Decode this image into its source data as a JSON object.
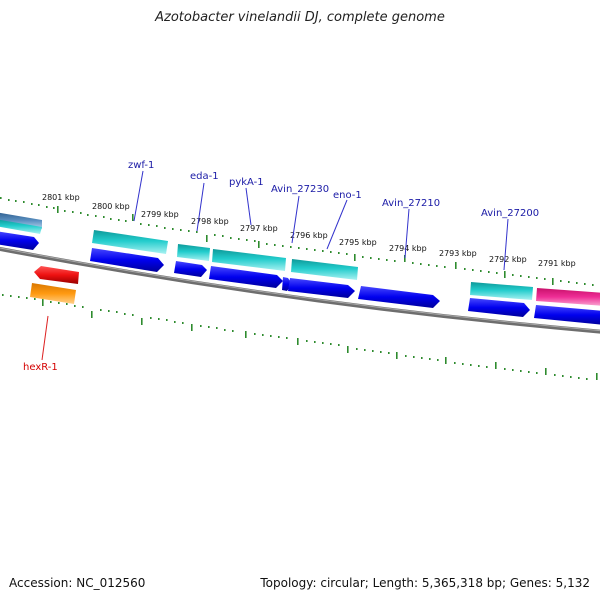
{
  "title": "Azotobacter vinelandii DJ, complete genome",
  "footer": {
    "accession": "Accession: NC_012560",
    "topology": "Topology: circular; Length: 5,365,318 bp; Genes: 5,132"
  },
  "scale_labels": [
    "2801 kbp",
    "2800 kbp",
    "2799 kbp",
    "2798 kbp",
    "2797 kbp",
    "2796 kbp",
    "2795 kbp",
    "2794 kbp",
    "2793 kbp",
    "2792 kbp",
    "2791 kbp"
  ],
  "gene_labels": {
    "zwf": "zwf-1",
    "eda": "eda-1",
    "pyka": "pykA-1",
    "avin27230": "Avin_27230",
    "eno": "eno-1",
    "avin27210": "Avin_27210",
    "avin27200": "Avin_27200",
    "hexr": "hexR-1"
  },
  "colors": {
    "cds": "#0000ee",
    "gene_cyan": "#22cccc",
    "highlight_pink": "#e61e8c",
    "red_feature": "#ee1111",
    "orange_feature": "#ff9a11",
    "backbone": "#808080",
    "tick": "#2e8b2e",
    "label_line_blue": "#3333cc",
    "label_line_red": "#dd2222"
  }
}
